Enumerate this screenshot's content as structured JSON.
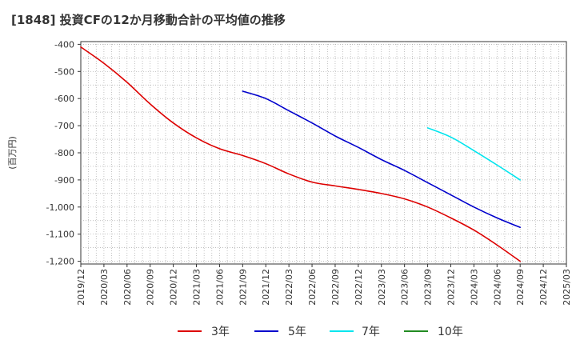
{
  "chart_data": {
    "type": "line",
    "title": "[1848]  投資CFの12か月移動合計の平均値の推移",
    "ylabel": "(百万円)",
    "xlabel": "",
    "ylim": [
      -1210,
      -390
    ],
    "y_ticks": [
      -400,
      -500,
      -600,
      -700,
      -800,
      -900,
      -1000,
      -1100,
      -1200
    ],
    "y_tick_labels": [
      "-400",
      "-500",
      "-600",
      "-700",
      "-800",
      "-900",
      "-1,000",
      "-1,100",
      "-1,200"
    ],
    "x_tick_labels": [
      "2019/12",
      "2020/03",
      "2020/06",
      "2020/09",
      "2020/12",
      "2021/03",
      "2021/06",
      "2021/09",
      "2021/12",
      "2022/03",
      "2022/06",
      "2022/09",
      "2022/12",
      "2023/03",
      "2023/06",
      "2023/09",
      "2023/12",
      "2024/03",
      "2024/06",
      "2024/09",
      "2024/12",
      "2025/03"
    ],
    "grid": true,
    "legend_position": "bottom",
    "series": [
      {
        "name": "3年",
        "color": "#dd0000",
        "x": [
          "2019/12",
          "2020/03",
          "2020/06",
          "2020/09",
          "2020/12",
          "2021/03",
          "2021/06",
          "2021/09",
          "2021/12",
          "2022/03",
          "2022/06",
          "2022/09",
          "2022/12",
          "2023/03",
          "2023/06",
          "2023/09",
          "2023/12",
          "2024/03",
          "2024/06",
          "2024/09"
        ],
        "values": [
          -410,
          -470,
          -540,
          -620,
          -690,
          -745,
          -785,
          -810,
          -840,
          -878,
          -908,
          -922,
          -935,
          -950,
          -970,
          -1000,
          -1040,
          -1085,
          -1140,
          -1200
        ]
      },
      {
        "name": "5年",
        "color": "#0000cc",
        "x": [
          "2021/09",
          "2021/12",
          "2022/03",
          "2022/06",
          "2022/09",
          "2022/12",
          "2023/03",
          "2023/06",
          "2023/09",
          "2023/12",
          "2024/03",
          "2024/06",
          "2024/09"
        ],
        "values": [
          -573,
          -600,
          -645,
          -690,
          -738,
          -780,
          -825,
          -865,
          -910,
          -955,
          -1000,
          -1040,
          -1075
        ]
      },
      {
        "name": "7年",
        "color": "#00e5ee",
        "x": [
          "2023/09",
          "2023/12",
          "2024/03",
          "2024/06",
          "2024/09"
        ],
        "values": [
          -708,
          -742,
          -792,
          -845,
          -900
        ]
      },
      {
        "name": "10年",
        "color": "#228b22",
        "x": [],
        "values": []
      }
    ]
  }
}
